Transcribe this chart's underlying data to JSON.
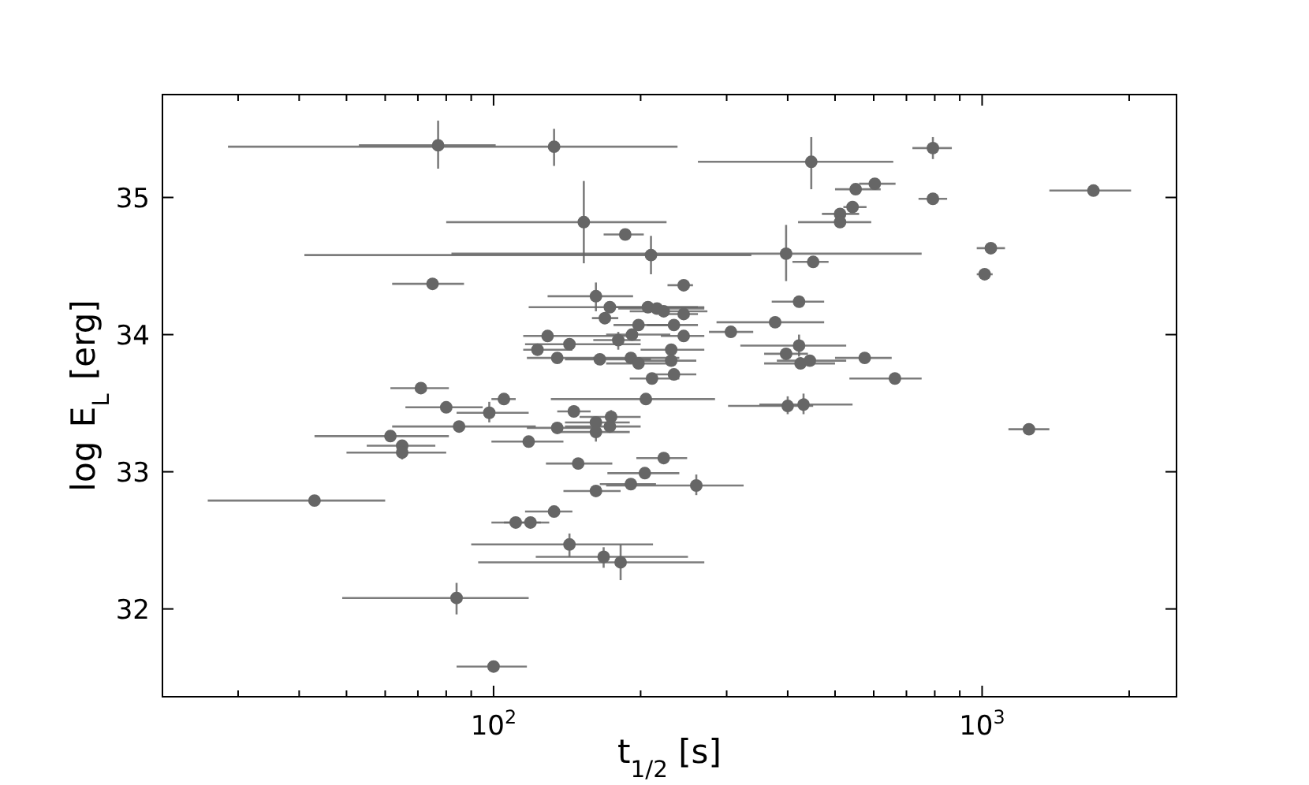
{
  "chart_data": {
    "type": "scatter",
    "xlabel": "t$_{1/2}$ [s]",
    "ylabel": "log E$_{L}$ [erg]",
    "log": "x",
    "marker": "circle",
    "grid": false,
    "xlim": [
      21,
      2500
    ],
    "ylim": [
      31.36,
      35.75
    ],
    "xticks": [
      {
        "value": 30,
        "label": null
      },
      {
        "value": 40,
        "label": null
      },
      {
        "value": 50,
        "label": null
      },
      {
        "value": 60,
        "label": null
      },
      {
        "value": 70,
        "label": null
      },
      {
        "value": 80,
        "label": null
      },
      {
        "value": 90,
        "label": null
      },
      {
        "value": 100,
        "label": "10$^{2}$"
      },
      {
        "value": 200,
        "label": null
      },
      {
        "value": 300,
        "label": null
      },
      {
        "value": 400,
        "label": null
      },
      {
        "value": 500,
        "label": null
      },
      {
        "value": 600,
        "label": null
      },
      {
        "value": 700,
        "label": null
      },
      {
        "value": 800,
        "label": null
      },
      {
        "value": 900,
        "label": null
      },
      {
        "value": 1000,
        "label": "10$^{3}$"
      },
      {
        "value": 2000,
        "label": null
      }
    ],
    "yticks": [
      32,
      33,
      34,
      35
    ],
    "series": [
      {
        "color": "#666666",
        "x": [
          77,
          133,
          447,
          793,
          1690,
          793,
          551,
          603,
          543,
          512,
          512,
          153,
          186,
          210,
          397,
          451,
          1042,
          1012,
          75,
          245,
          162,
          422,
          173,
          207,
          216,
          223,
          245,
          169,
          377,
          198,
          234,
          306,
          245,
          129,
          192,
          180,
          143,
          123,
          135,
          165,
          191,
          198,
          231,
          231,
          211,
          234,
          422,
          397,
          425,
          444,
          575,
          663,
          71,
          105,
          80,
          98,
          146,
          205,
          85,
          61.5,
          65,
          65,
          135,
          162,
          174,
          173,
          162,
          400,
          431,
          118,
          149,
          223,
          204,
          191,
          260,
          162,
          133,
          111,
          119,
          143,
          168,
          182,
          43,
          84,
          100,
          1247
        ],
        "values": [
          35.38,
          35.37,
          35.26,
          35.36,
          35.05,
          34.99,
          35.06,
          35.1,
          34.93,
          34.88,
          34.82,
          34.82,
          34.73,
          34.58,
          34.59,
          34.53,
          34.63,
          34.44,
          34.37,
          34.36,
          34.28,
          34.24,
          34.2,
          34.2,
          34.19,
          34.17,
          34.15,
          34.12,
          34.09,
          34.07,
          34.07,
          34.02,
          33.99,
          33.99,
          34.0,
          33.96,
          33.93,
          33.89,
          33.83,
          33.82,
          33.83,
          33.79,
          33.89,
          33.81,
          33.68,
          33.71,
          33.92,
          33.86,
          33.79,
          33.81,
          33.83,
          33.68,
          33.61,
          33.53,
          33.47,
          33.43,
          33.44,
          33.53,
          33.33,
          33.26,
          33.19,
          33.14,
          33.32,
          33.36,
          33.4,
          33.33,
          33.29,
          33.48,
          33.49,
          33.22,
          33.06,
          33.1,
          32.99,
          32.91,
          32.9,
          32.86,
          32.71,
          32.63,
          32.63,
          32.47,
          32.38,
          32.34,
          32.79,
          32.08,
          31.58,
          33.31
        ],
        "xerrors": [
          [
            53,
            101
          ],
          [
            28.6,
            238
          ],
          [
            262,
            658
          ],
          [
            720,
            867
          ],
          [
            1373,
            2018
          ],
          [
            741,
            848
          ],
          [
            500,
            620
          ],
          [
            560,
            665
          ],
          [
            520,
            580
          ],
          [
            470,
            560
          ],
          [
            420,
            593
          ],
          [
            80,
            226
          ],
          [
            168,
            203
          ],
          [
            41,
            337
          ],
          [
            82,
            752
          ],
          [
            409,
            485
          ],
          [
            975,
            1114
          ],
          [
            975,
            1051
          ],
          [
            62,
            87
          ],
          [
            227,
            256
          ],
          [
            129,
            193
          ],
          [
            371,
            475
          ],
          [
            118,
            262
          ],
          [
            175,
            270
          ],
          [
            180,
            270
          ],
          [
            190,
            274
          ],
          [
            226,
            262
          ],
          [
            159,
            180
          ],
          [
            286,
            475
          ],
          [
            176,
            230
          ],
          [
            206,
            262
          ],
          [
            276,
            340
          ],
          [
            220,
            270
          ],
          [
            115,
            193
          ],
          [
            170,
            230
          ],
          [
            160,
            200
          ],
          [
            116,
            200
          ],
          [
            115,
            145
          ],
          [
            117,
            165
          ],
          [
            140,
            210
          ],
          [
            160,
            240
          ],
          [
            170,
            230
          ],
          [
            200,
            270
          ],
          [
            200,
            260
          ],
          [
            190,
            240
          ],
          [
            210,
            260
          ],
          [
            320,
            527
          ],
          [
            358,
            440
          ],
          [
            358,
            500
          ],
          [
            380,
            527
          ],
          [
            500,
            653
          ],
          [
            535,
            752
          ],
          [
            61.5,
            81
          ],
          [
            99,
            111
          ],
          [
            66,
            95
          ],
          [
            84,
            118
          ],
          [
            135,
            158
          ],
          [
            131,
            284
          ],
          [
            62,
            122
          ],
          [
            43,
            81
          ],
          [
            55,
            76
          ],
          [
            50,
            80
          ],
          [
            117,
            160
          ],
          [
            140,
            190
          ],
          [
            150,
            200
          ],
          [
            140,
            200
          ],
          [
            135,
            190
          ],
          [
            302,
            451
          ],
          [
            350,
            543
          ],
          [
            99,
            139
          ],
          [
            128,
            175
          ],
          [
            196,
            249
          ],
          [
            171,
            240
          ],
          [
            165,
            215
          ],
          [
            170,
            325
          ],
          [
            139,
            182
          ],
          [
            116,
            145
          ],
          [
            99,
            125
          ],
          [
            105,
            130
          ],
          [
            90,
            212
          ],
          [
            122,
            250
          ],
          [
            93,
            270
          ],
          [
            26,
            60
          ],
          [
            49,
            118
          ],
          [
            84,
            117
          ],
          [
            1132,
            1373
          ]
        ],
        "errors": [
          [
            35.21,
            35.56
          ],
          [
            35.23,
            35.5
          ],
          [
            35.06,
            35.44
          ],
          [
            35.28,
            35.44
          ],
          null,
          null,
          null,
          null,
          null,
          null,
          null,
          [
            34.52,
            35.12
          ],
          null,
          [
            34.44,
            34.72
          ],
          [
            34.39,
            34.8
          ],
          null,
          null,
          null,
          null,
          null,
          [
            34.17,
            34.38
          ],
          null,
          null,
          null,
          null,
          null,
          null,
          null,
          null,
          null,
          null,
          null,
          null,
          null,
          null,
          [
            33.89,
            34.02
          ],
          null,
          null,
          null,
          null,
          null,
          null,
          null,
          null,
          null,
          null,
          [
            33.84,
            34.0
          ],
          null,
          null,
          null,
          null,
          null,
          null,
          null,
          null,
          [
            33.36,
            33.51
          ],
          null,
          null,
          null,
          null,
          null,
          [
            33.09,
            33.19
          ],
          null,
          null,
          [
            33.35,
            33.45
          ],
          null,
          [
            33.22,
            33.33
          ],
          [
            33.42,
            33.55
          ],
          [
            33.42,
            33.57
          ],
          null,
          null,
          null,
          null,
          null,
          [
            32.83,
            32.98
          ],
          null,
          null,
          null,
          null,
          [
            32.38,
            32.55
          ],
          [
            32.3,
            32.45
          ],
          [
            32.21,
            32.47
          ],
          null,
          [
            31.96,
            32.19
          ],
          null,
          null
        ]
      }
    ]
  }
}
